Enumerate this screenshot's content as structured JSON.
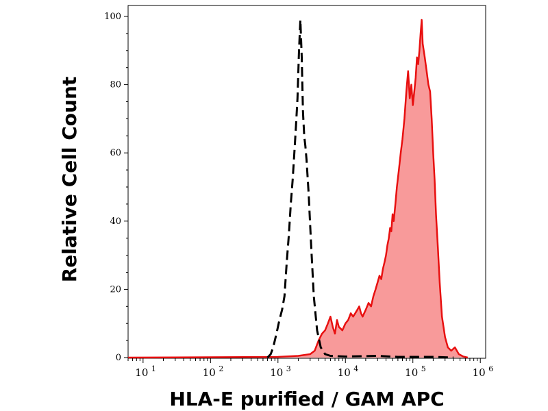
{
  "chart_data": {
    "type": "area",
    "title": "",
    "xlabel": "HLA-E purified / GAM APC",
    "ylabel": "Relative Cell Count",
    "x_scale": "log",
    "xlim": [
      6,
      1200000
    ],
    "ylim": [
      0,
      100
    ],
    "x_ticks": [
      {
        "value": 10,
        "base": "10",
        "exp": "1"
      },
      {
        "value": 100,
        "base": "10",
        "exp": "2"
      },
      {
        "value": 1000,
        "base": "10",
        "exp": "3"
      },
      {
        "value": 10000,
        "base": "10",
        "exp": "4"
      },
      {
        "value": 100000,
        "base": "10",
        "exp": "5"
      },
      {
        "value": 1000000,
        "base": "10",
        "exp": "6"
      }
    ],
    "y_ticks": [
      "0",
      "20",
      "40",
      "60",
      "80",
      "100"
    ],
    "grid": false,
    "legend": "none",
    "series": [
      {
        "style": "dashed-black-outline",
        "color": "#000000",
        "points": [
          [
            700,
            0
          ],
          [
            780,
            1
          ],
          [
            850,
            3
          ],
          [
            950,
            7
          ],
          [
            1050,
            11
          ],
          [
            1150,
            14
          ],
          [
            1250,
            18
          ],
          [
            1350,
            28
          ],
          [
            1450,
            36
          ],
          [
            1550,
            45
          ],
          [
            1650,
            52
          ],
          [
            1750,
            60
          ],
          [
            1850,
            68
          ],
          [
            1950,
            76
          ],
          [
            2050,
            90
          ],
          [
            2150,
            99
          ],
          [
            2250,
            88
          ],
          [
            2350,
            72
          ],
          [
            2450,
            65
          ],
          [
            2550,
            62
          ],
          [
            2650,
            58
          ],
          [
            2850,
            48
          ],
          [
            3100,
            33
          ],
          [
            3400,
            18
          ],
          [
            3800,
            8
          ],
          [
            4300,
            3
          ],
          [
            5000,
            1
          ],
          [
            6000,
            0.5
          ],
          [
            10000,
            0.3
          ],
          [
            30000,
            0.5
          ],
          [
            60000,
            0.2
          ],
          [
            200000,
            0.2
          ],
          [
            400000,
            0
          ]
        ]
      },
      {
        "style": "filled-red",
        "color": "#e81010",
        "fill": "#f89a9a",
        "points": [
          [
            6,
            0
          ],
          [
            1000,
            0.2
          ],
          [
            2000,
            0.5
          ],
          [
            3000,
            1
          ],
          [
            3500,
            2
          ],
          [
            4000,
            5
          ],
          [
            4500,
            7
          ],
          [
            5000,
            8
          ],
          [
            5500,
            10
          ],
          [
            6000,
            12
          ],
          [
            6500,
            9
          ],
          [
            7000,
            7
          ],
          [
            7500,
            11
          ],
          [
            8000,
            9
          ],
          [
            9000,
            8
          ],
          [
            10000,
            10
          ],
          [
            11000,
            11
          ],
          [
            12000,
            13
          ],
          [
            13000,
            12
          ],
          [
            14000,
            13
          ],
          [
            15000,
            14
          ],
          [
            16000,
            15
          ],
          [
            17000,
            13
          ],
          [
            18000,
            12
          ],
          [
            20000,
            14
          ],
          [
            22000,
            16
          ],
          [
            24000,
            15
          ],
          [
            26000,
            18
          ],
          [
            28000,
            20
          ],
          [
            30000,
            22
          ],
          [
            32000,
            24
          ],
          [
            34000,
            23
          ],
          [
            36000,
            26
          ],
          [
            38000,
            28
          ],
          [
            40000,
            30
          ],
          [
            42000,
            33
          ],
          [
            44000,
            35
          ],
          [
            46000,
            38
          ],
          [
            48000,
            37
          ],
          [
            50000,
            42
          ],
          [
            52000,
            40
          ],
          [
            55000,
            45
          ],
          [
            58000,
            50
          ],
          [
            62000,
            55
          ],
          [
            66000,
            60
          ],
          [
            70000,
            64
          ],
          [
            75000,
            70
          ],
          [
            80000,
            78
          ],
          [
            85000,
            84
          ],
          [
            90000,
            76
          ],
          [
            95000,
            80
          ],
          [
            100000,
            74
          ],
          [
            105000,
            78
          ],
          [
            110000,
            82
          ],
          [
            115000,
            88
          ],
          [
            120000,
            86
          ],
          [
            125000,
            90
          ],
          [
            130000,
            95
          ],
          [
            135000,
            99
          ],
          [
            140000,
            92
          ],
          [
            150000,
            88
          ],
          [
            160000,
            84
          ],
          [
            170000,
            80
          ],
          [
            180000,
            78
          ],
          [
            190000,
            70
          ],
          [
            200000,
            60
          ],
          [
            210000,
            52
          ],
          [
            220000,
            42
          ],
          [
            235000,
            32
          ],
          [
            250000,
            22
          ],
          [
            270000,
            12
          ],
          [
            300000,
            6
          ],
          [
            330000,
            3
          ],
          [
            370000,
            2
          ],
          [
            420000,
            3
          ],
          [
            480000,
            1
          ],
          [
            560000,
            0.3
          ],
          [
            650000,
            0
          ]
        ]
      }
    ]
  }
}
